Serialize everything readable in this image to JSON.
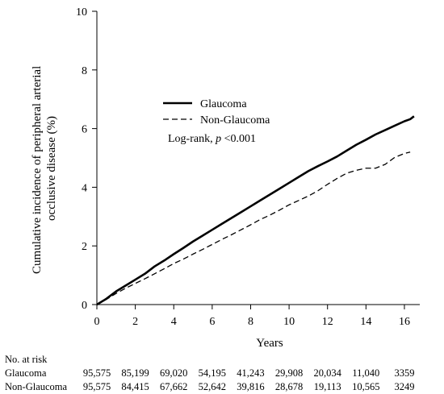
{
  "chart_data": {
    "type": "line",
    "xlabel": "Years",
    "ylabel_lines": [
      "Cumulative incidence of peripheral arterial",
      "occlusive disease (%)"
    ],
    "xlim": [
      0,
      16.8
    ],
    "ylim": [
      0,
      10
    ],
    "x_ticks": [
      0,
      2,
      4,
      6,
      8,
      10,
      12,
      14,
      16
    ],
    "y_ticks": [
      0,
      2,
      4,
      6,
      8,
      10
    ],
    "x_tick_labels": [
      "0",
      "2",
      "4",
      "6",
      "8",
      "10",
      "12",
      "14",
      "16"
    ],
    "y_tick_labels": [
      "0",
      "2",
      "4",
      "6",
      "8",
      "10"
    ],
    "legend_placement": "upper-center",
    "series": [
      {
        "name": "Glaucoma",
        "style": "solid",
        "x": [
          0,
          0.5,
          1,
          1.5,
          2,
          2.5,
          3,
          3.5,
          4,
          4.5,
          5,
          5.5,
          6,
          6.5,
          7,
          7.5,
          8,
          8.5,
          9,
          9.5,
          10,
          10.5,
          11,
          11.5,
          12,
          12.5,
          13,
          13.5,
          14,
          14.5,
          15,
          15.5,
          16,
          16.3,
          16.5
        ],
        "y": [
          0,
          0.2,
          0.45,
          0.65,
          0.85,
          1.05,
          1.3,
          1.5,
          1.72,
          1.93,
          2.15,
          2.35,
          2.55,
          2.75,
          2.95,
          3.15,
          3.35,
          3.55,
          3.75,
          3.95,
          4.15,
          4.35,
          4.55,
          4.72,
          4.88,
          5.05,
          5.25,
          5.45,
          5.62,
          5.8,
          5.95,
          6.1,
          6.25,
          6.32,
          6.42
        ]
      },
      {
        "name": "Non-Glaucoma",
        "style": "dashed",
        "x": [
          0,
          0.5,
          1,
          1.5,
          2,
          2.5,
          3,
          3.5,
          4,
          4.5,
          5,
          5.5,
          6,
          6.5,
          7,
          7.5,
          8,
          8.5,
          9,
          9.5,
          10,
          10.5,
          11,
          11.5,
          12,
          12.5,
          13,
          13.5,
          14,
          14.5,
          15,
          15.5,
          16,
          16.3
        ],
        "y": [
          0,
          0.18,
          0.38,
          0.56,
          0.72,
          0.88,
          1.05,
          1.22,
          1.4,
          1.55,
          1.72,
          1.88,
          2.05,
          2.22,
          2.38,
          2.55,
          2.72,
          2.9,
          3.05,
          3.22,
          3.4,
          3.55,
          3.7,
          3.88,
          4.1,
          4.3,
          4.48,
          4.58,
          4.65,
          4.65,
          4.78,
          5.02,
          5.15,
          5.2
        ]
      }
    ],
    "legend": {
      "entries": [
        {
          "label": "Glaucoma",
          "style": "solid"
        },
        {
          "label": "Non-Glaucoma",
          "style": "dashed"
        }
      ],
      "logrank_prefix": "Log-rank, ",
      "logrank_p": "p",
      "logrank_suffix": " <0.001"
    },
    "risk_table": {
      "header": "No. at risk",
      "rows": [
        {
          "label": "Glaucoma",
          "values": [
            "95,575",
            "85,199",
            "69,020",
            "54,195",
            "41,243",
            "29,908",
            "20,034",
            "11,040",
            "3359"
          ]
        },
        {
          "label": "Non-Glaucoma",
          "values": [
            "95,575",
            "84,415",
            "67,662",
            "52,642",
            "39,816",
            "28,678",
            "19,113",
            "10,565",
            "3249"
          ]
        }
      ]
    }
  }
}
